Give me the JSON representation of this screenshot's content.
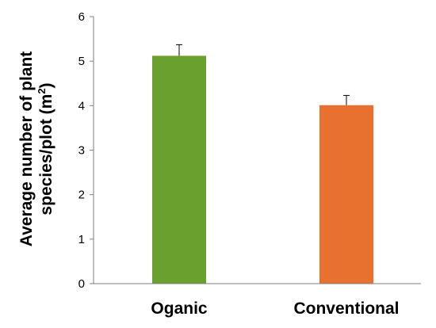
{
  "chart_data": {
    "type": "bar",
    "categories": [
      "Oganic",
      "Conventional"
    ],
    "values": [
      5.12,
      4.01
    ],
    "errors": [
      0.25,
      0.22
    ],
    "colors": [
      "#6aa12e",
      "#e8712f"
    ],
    "ylabel_line1": "Average number of plant",
    "ylabel_line2_main": "species/plot (m",
    "ylabel_line2_sup": "2",
    "ylabel_line2_end": ")",
    "xlabel": "",
    "title": "",
    "ylim": [
      0,
      6
    ],
    "yticks": [
      "0",
      "1",
      "2",
      "3",
      "4",
      "5",
      "6"
    ],
    "grid": false,
    "legend": "none"
  }
}
